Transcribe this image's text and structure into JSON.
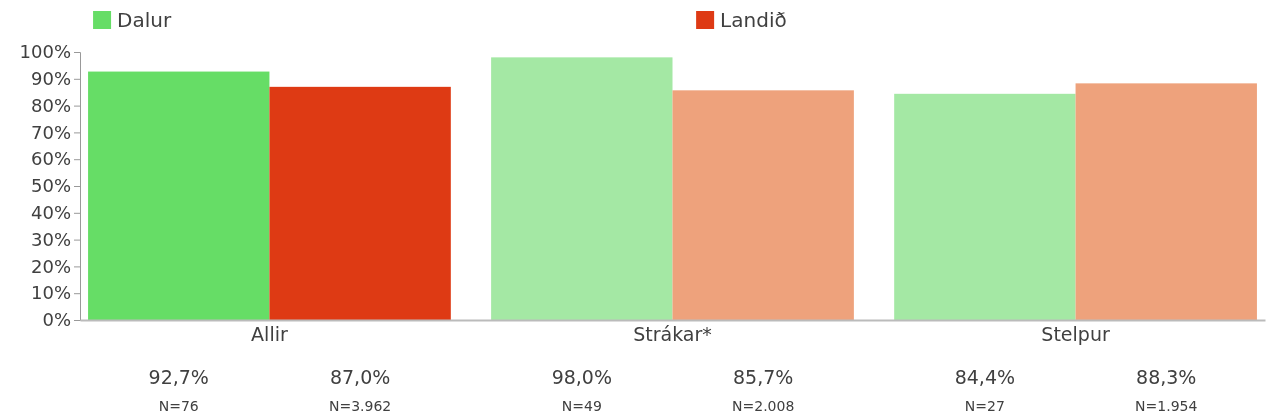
{
  "chart_data": {
    "type": "bar",
    "categories": [
      "Allir",
      "Strákar*",
      "Stelpur"
    ],
    "series": [
      {
        "name": "Dalur",
        "color": "#66dd66",
        "colors": [
          "#66dd66",
          "#a4e8a4",
          "#a4e8a4"
        ],
        "values": [
          92.7,
          98.0,
          84.4
        ],
        "value_labels": [
          "92,7%",
          "98,0%",
          "84,4%"
        ]
      },
      {
        "name": "Landið",
        "color": "#de3a14",
        "colors": [
          "#de3a14",
          "#eea27c",
          "#eea27c"
        ],
        "values": [
          87.0,
          85.7,
          88.3
        ],
        "value_labels": [
          "87,0%",
          "85,7%",
          "88,3%"
        ]
      }
    ],
    "annotations": [
      "N=76",
      "N=3.962",
      "N=49",
      "N=2.008",
      "N=27",
      "N=1.954"
    ],
    "ylim": [
      0,
      100
    ],
    "yticks": [
      {
        "value": 0,
        "label": "0%"
      },
      {
        "value": 10,
        "label": "10%"
      },
      {
        "value": 20,
        "label": "20%"
      },
      {
        "value": 30,
        "label": "30%"
      },
      {
        "value": 40,
        "label": "40%"
      },
      {
        "value": 50,
        "label": "50%"
      },
      {
        "value": 60,
        "label": "60%"
      },
      {
        "value": 70,
        "label": "70%"
      },
      {
        "value": 80,
        "label": "80%"
      },
      {
        "value": 90,
        "label": "90%"
      },
      {
        "value": 100,
        "label": "100%"
      }
    ],
    "grid": false,
    "legend": "top"
  }
}
